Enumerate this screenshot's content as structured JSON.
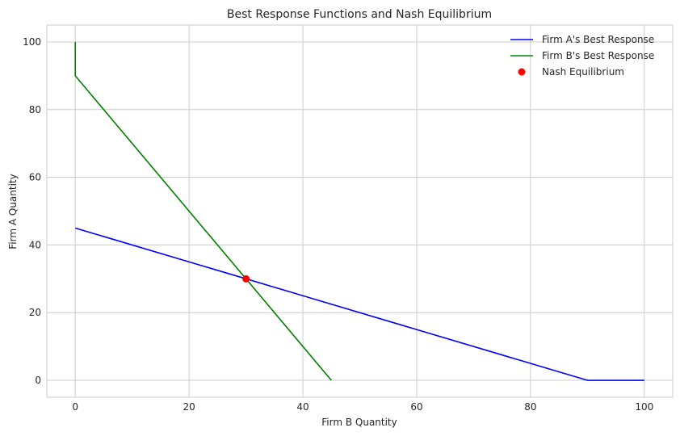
{
  "chart_data": {
    "type": "line",
    "title": "Best Response Functions and Nash Equilibrium",
    "xlabel": "Firm B Quantity",
    "ylabel": "Firm A Quantity",
    "xlim": [
      -5,
      105
    ],
    "ylim": [
      -5,
      105
    ],
    "xticks": [
      0,
      20,
      40,
      60,
      80,
      100
    ],
    "yticks": [
      0,
      20,
      40,
      60,
      80,
      100
    ],
    "grid": true,
    "legend_position": "top-right",
    "series": [
      {
        "name": "Firm A's Best Response",
        "color": "#0000ff",
        "marker": "line",
        "x": [
          0,
          90,
          100
        ],
        "y": [
          45,
          0,
          0
        ]
      },
      {
        "name": "Firm B's Best Response",
        "color": "#008000",
        "marker": "line",
        "x": [
          0,
          0,
          45
        ],
        "y": [
          100,
          90,
          0
        ]
      },
      {
        "name": "Nash Equilibrium",
        "color": "#ff0000",
        "marker": "point",
        "x": [
          30
        ],
        "y": [
          30
        ]
      }
    ]
  }
}
